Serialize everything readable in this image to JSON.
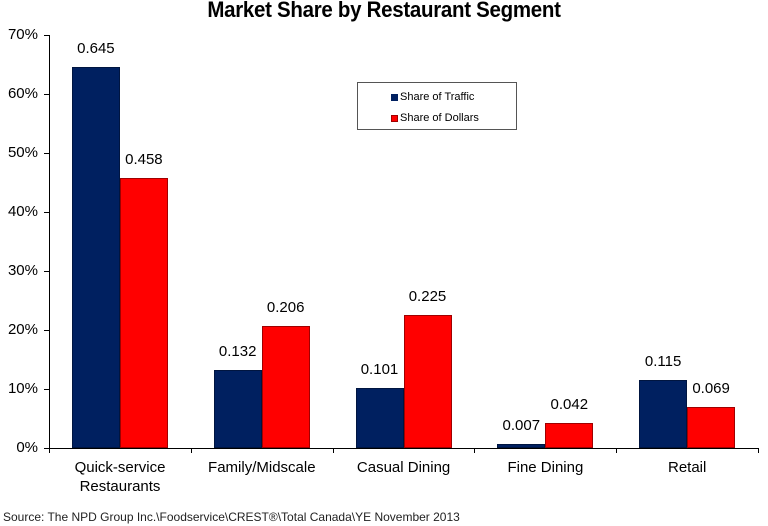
{
  "chart_data": {
    "type": "bar",
    "title": "Market Share by Restaurant Segment",
    "xlabel": "",
    "ylabel": "",
    "ylim": [
      0,
      0.7
    ],
    "yticks": [
      "0%",
      "10%",
      "20%",
      "30%",
      "40%",
      "50%",
      "60%",
      "70%"
    ],
    "categories": [
      "Quick-service Restaurants",
      "Family/Midscale",
      "Casual Dining",
      "Fine Dining",
      "Retail"
    ],
    "series": [
      {
        "name": "Share of Traffic",
        "color": "#002060",
        "values": [
          0.645,
          0.132,
          0.101,
          0.007,
          0.115
        ]
      },
      {
        "name": "Share of Dollars",
        "color": "#ff0000",
        "values": [
          0.458,
          0.206,
          0.225,
          0.042,
          0.069
        ]
      }
    ],
    "data_labels": [
      [
        "0.645",
        "0.132",
        "0.101",
        "0.007",
        "0.115"
      ],
      [
        "0.458",
        "0.206",
        "0.225",
        "0.042",
        "0.069"
      ]
    ],
    "legend_position": "top-center-inside",
    "grid": false
  },
  "labels": {
    "title": "Market Share by Restaurant Segment",
    "y": [
      "0%",
      "10%",
      "20%",
      "30%",
      "40%",
      "50%",
      "60%",
      "70%"
    ],
    "x": [
      [
        "Quick-service",
        "Restaurants"
      ],
      [
        "Family/Midscale"
      ],
      [
        "Casual Dining"
      ],
      [
        "Fine Dining"
      ],
      [
        "Retail"
      ]
    ],
    "legend": [
      "Share of Traffic",
      "Share of Dollars"
    ],
    "source": "Source: The NPD Group Inc.\\Foodservice\\CREST®\\Total Canada\\YE November 2013"
  }
}
